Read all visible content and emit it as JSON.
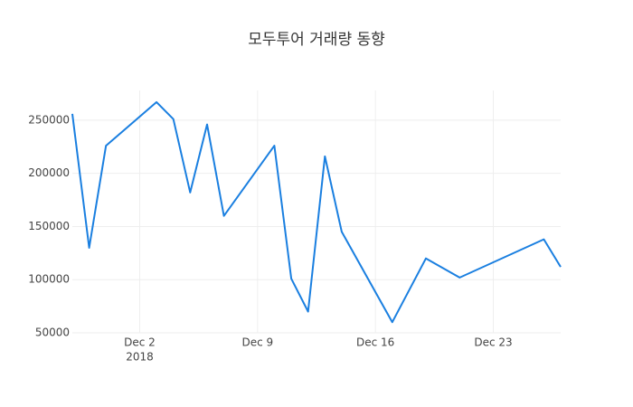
{
  "chart_data": {
    "type": "line",
    "title": "모두투어 거래량 동향",
    "x": [
      "2018-11-28",
      "2018-11-29",
      "2018-11-30",
      "2018-12-03",
      "2018-12-04",
      "2018-12-05",
      "2018-12-06",
      "2018-12-07",
      "2018-12-10",
      "2018-12-11",
      "2018-12-12",
      "2018-12-13",
      "2018-12-14",
      "2018-12-17",
      "2018-12-19",
      "2018-12-21",
      "2018-12-26",
      "2018-12-27"
    ],
    "series": [
      {
        "color": "#1a7fe0",
        "values": [
          256000,
          130000,
          226000,
          267000,
          251000,
          182000,
          246000,
          160000,
          226000,
          101000,
          70000,
          216000,
          145000,
          60000,
          120000,
          102000,
          138000,
          112000
        ]
      }
    ],
    "xlim": [
      "2018-11-28",
      "2018-12-27"
    ],
    "xticks": [
      {
        "value": "2018-12-02",
        "label": "Dec 2"
      },
      {
        "value": "2018-12-09",
        "label": "Dec 9"
      },
      {
        "value": "2018-12-16",
        "label": "Dec 16"
      },
      {
        "value": "2018-12-23",
        "label": "Dec 23"
      }
    ],
    "xtick_year": "2018",
    "ylim": [
      50000,
      278000
    ],
    "yticks": [
      50000,
      100000,
      150000,
      200000,
      250000
    ],
    "grid": true
  }
}
